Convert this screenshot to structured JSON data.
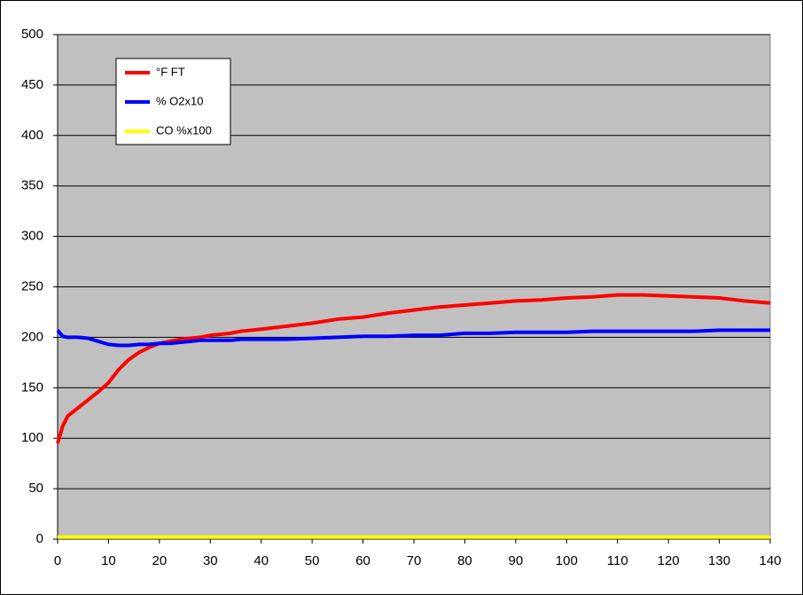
{
  "chart_data": {
    "type": "line",
    "x": [
      0,
      1,
      2,
      4,
      6,
      8,
      10,
      12,
      14,
      16,
      18,
      20,
      22,
      24,
      26,
      28,
      30,
      32,
      34,
      36,
      38,
      40,
      45,
      50,
      55,
      60,
      65,
      70,
      75,
      80,
      85,
      90,
      95,
      100,
      105,
      110,
      115,
      120,
      125,
      130,
      135,
      140
    ],
    "series": [
      {
        "name": "°F FT",
        "color": "#ff0000",
        "values": [
          95,
          112,
          122,
          130,
          138,
          146,
          155,
          168,
          178,
          185,
          190,
          194,
          196,
          198,
          199,
          200,
          202,
          203,
          204,
          206,
          207,
          208,
          211,
          214,
          218,
          220,
          224,
          227,
          230,
          232,
          234,
          236,
          237,
          239,
          240,
          242,
          242,
          241,
          240,
          239,
          236,
          234
        ]
      },
      {
        "name": "% O2x10",
        "color": "#0000ff",
        "values": [
          207,
          201,
          200,
          200,
          199,
          196,
          193,
          192,
          192,
          193,
          193,
          194,
          194,
          195,
          196,
          197,
          197,
          197,
          197,
          198,
          198,
          198,
          198,
          199,
          200,
          201,
          201,
          202,
          202,
          204,
          204,
          205,
          205,
          205,
          206,
          206,
          206,
          206,
          206,
          207,
          207,
          207
        ]
      },
      {
        "name": "CO %x100",
        "color": "#ffff00",
        "values": [
          2,
          2,
          2,
          2,
          2,
          2,
          2,
          2,
          2,
          2,
          2,
          2,
          2,
          2,
          2,
          2,
          2,
          2,
          2,
          2,
          2,
          2,
          2,
          2,
          2,
          2,
          2,
          2,
          2,
          2,
          2,
          2,
          2,
          2,
          2,
          2,
          2,
          2,
          2,
          2,
          2,
          2
        ]
      }
    ],
    "xlim": [
      0,
      140
    ],
    "xticks": [
      0,
      10,
      20,
      30,
      40,
      50,
      60,
      70,
      80,
      90,
      100,
      110,
      120,
      130,
      140
    ],
    "ylim": [
      0,
      500
    ],
    "yticks": [
      0,
      50,
      100,
      150,
      200,
      250,
      300,
      350,
      400,
      450,
      500
    ],
    "grid": true,
    "plot_background": "#c0c0c0",
    "legend": "top-left"
  }
}
